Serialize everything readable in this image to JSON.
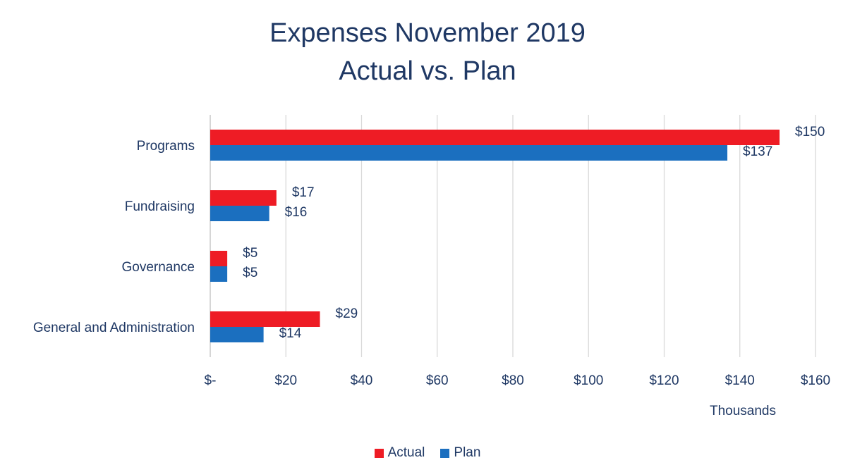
{
  "chart_data": {
    "type": "bar",
    "orientation": "horizontal",
    "title_lines": [
      "Expenses November 2019",
      "Actual vs. Plan"
    ],
    "categories": [
      "Programs",
      "Fundraising",
      "Governance",
      "General and Administration"
    ],
    "series": [
      {
        "name": "Actual",
        "color": "#ee1c25",
        "values": [
          150.5,
          17.5,
          4.5,
          29.0
        ],
        "labels": [
          "$150",
          "$17",
          "$5",
          "$29"
        ]
      },
      {
        "name": "Plan",
        "color": "#1b6fbf",
        "values": [
          136.7,
          15.6,
          4.5,
          14.1
        ],
        "labels": [
          "$137",
          "$16",
          "$5",
          "$14"
        ]
      }
    ],
    "xlim": [
      0,
      160
    ],
    "xticks": [
      0,
      20,
      40,
      60,
      80,
      100,
      120,
      140,
      160
    ],
    "xtick_labels": [
      "$-",
      "$20",
      "$40",
      "$60",
      "$80",
      "$100",
      "$120",
      "$140",
      "$160"
    ],
    "xlabel": "Thousands",
    "ylabel": "",
    "grid": "vertical",
    "legend_position": "bottom"
  }
}
